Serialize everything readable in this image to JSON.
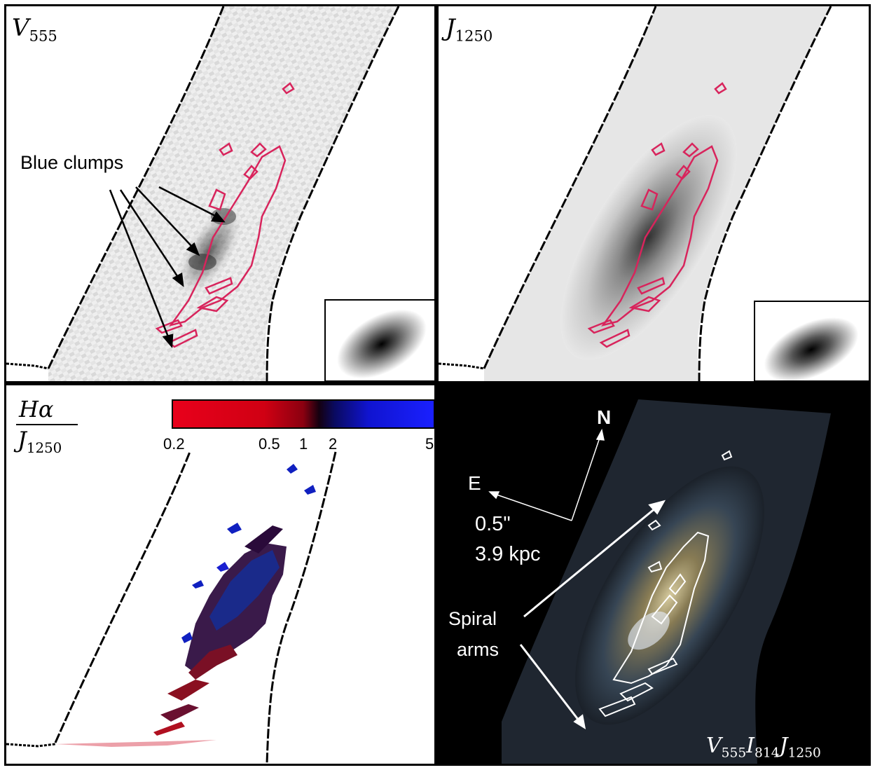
{
  "panels": {
    "top_left": {
      "band": "V",
      "band_sub": "555",
      "annotation": "Blue clumps"
    },
    "top_right": {
      "band": "J",
      "band_sub": "1250"
    },
    "bottom_left": {
      "numerator": "Hα",
      "denominator_band": "J",
      "denominator_sub": "1250",
      "colorbar": {
        "ticks": [
          "0.2",
          "0.5",
          "1",
          "2",
          "5"
        ],
        "colors": {
          "low": "#e8001b",
          "mid": "#0a0a0a",
          "high": "#1a20ff"
        }
      }
    },
    "bottom_right": {
      "compass_north": "N",
      "compass_east": "E",
      "scale_arcsec": "0.5\"",
      "scale_kpc": "3.9 kpc",
      "spiral_label_1": "Spiral",
      "spiral_label_2": "arms",
      "bands": [
        {
          "band": "V",
          "sub": "555"
        },
        {
          "band": "I",
          "sub": "814"
        },
        {
          "band": "J",
          "sub": "1250"
        }
      ]
    }
  },
  "colors": {
    "contour_magenta": "#d8245c",
    "contour_white": "#ffffff",
    "frame": "#000000"
  }
}
